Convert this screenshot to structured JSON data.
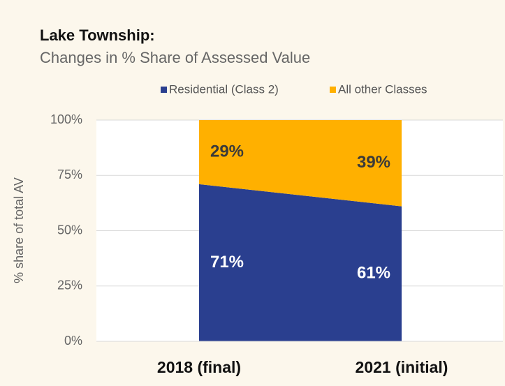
{
  "chart_data": {
    "type": "stacked_area",
    "title": "Lake Township:",
    "subtitle": "Changes in % Share of Assessed Value",
    "y_label": "% share of total AV",
    "categories": [
      "2018 (final)",
      "2021 (initial)"
    ],
    "series": [
      {
        "name": "Residential (Class 2)",
        "color": "#2a3f8f",
        "values": [
          71,
          61
        ],
        "value_labels": [
          "71%",
          "61%"
        ]
      },
      {
        "name": "All other Classes",
        "color": "#ffb000",
        "values": [
          29,
          39
        ],
        "value_labels": [
          "29%",
          "39%"
        ]
      }
    ],
    "ylim": [
      0,
      100
    ],
    "yticks": [
      {
        "value": 0,
        "label": "0%"
      },
      {
        "value": 25,
        "label": "25%"
      },
      {
        "value": 50,
        "label": "50%"
      },
      {
        "value": 75,
        "label": "75%"
      },
      {
        "value": 100,
        "label": "100%"
      }
    ],
    "grid": true,
    "legend": "top"
  }
}
